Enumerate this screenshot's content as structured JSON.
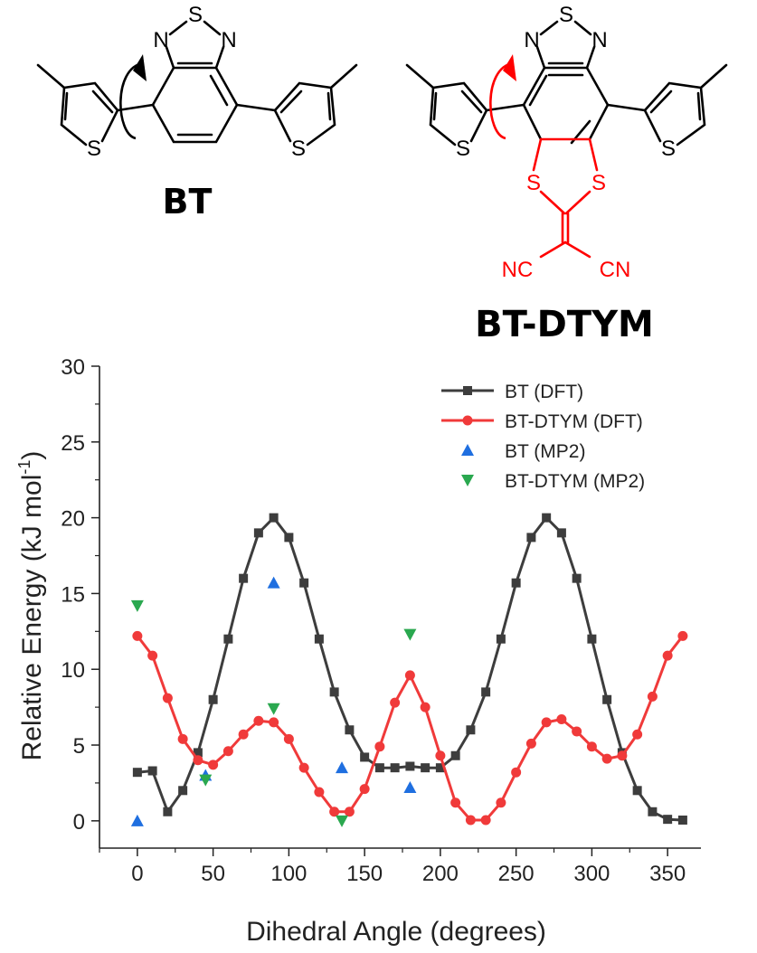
{
  "molecules": {
    "bt": {
      "name": "BT",
      "atoms": {
        "s_thiadiazole": "S",
        "n_left": "N",
        "n_right": "N",
        "s_thiophene_left": "S",
        "s_thiophene_right": "S"
      }
    },
    "btdtym": {
      "name": "BT-DTYM",
      "atoms": {
        "s_thiadiazole": "S",
        "n_left": "N",
        "n_right": "N",
        "s_thiophene_left": "S",
        "s_thiophene_right": "S",
        "s_dithiole_left": "S",
        "s_dithiole_right": "S",
        "nc_left": "NC",
        "cn_right": "CN"
      }
    },
    "colors": {
      "bt": "#000000",
      "btdtym_modification": "#ff0000"
    }
  },
  "chart_data": {
    "type": "line",
    "xlabel": "Dihedral Angle (degrees)",
    "ylabel": "Relative Energy (kJ mol",
    "ylabel_superscript": "-1",
    "ylabel_suffix": ")",
    "xlim": [
      -25,
      372
    ],
    "ylim": [
      -1.8,
      30
    ],
    "xticks": [
      0,
      50,
      100,
      150,
      200,
      250,
      300,
      350
    ],
    "yticks": [
      0,
      5,
      10,
      15,
      20,
      25,
      30
    ],
    "legend_position": "top-right",
    "series": [
      {
        "name": "BT (DFT)",
        "color": "#3d3d3d",
        "marker": "square",
        "line": true,
        "x": [
          0,
          10,
          20,
          30,
          40,
          50,
          60,
          70,
          80,
          90,
          100,
          110,
          120,
          130,
          140,
          150,
          160,
          170,
          180,
          190,
          200,
          210,
          220,
          230,
          240,
          250,
          260,
          270,
          280,
          290,
          300,
          310,
          320,
          330,
          340,
          350,
          360
        ],
        "y": [
          3.2,
          3.3,
          0.6,
          2.0,
          4.5,
          8.0,
          12.0,
          16.0,
          19.0,
          20.0,
          18.7,
          15.7,
          12.0,
          8.5,
          6.0,
          4.2,
          3.5,
          3.5,
          3.6,
          3.5,
          3.5,
          4.3,
          6.0,
          8.5,
          12.0,
          15.7,
          18.7,
          20.0,
          19.0,
          16.0,
          12.0,
          8.0,
          4.5,
          2.0,
          0.6,
          0.1,
          0.05
        ]
      },
      {
        "name": "BT-DTYM (DFT)",
        "color": "#f03a3a",
        "marker": "circle",
        "line": true,
        "x": [
          0,
          10,
          20,
          30,
          40,
          50,
          60,
          70,
          80,
          90,
          100,
          110,
          120,
          130,
          140,
          150,
          160,
          170,
          180,
          190,
          200,
          210,
          220,
          230,
          240,
          250,
          260,
          270,
          280,
          290,
          300,
          310,
          320,
          330,
          340,
          350,
          360
        ],
        "y": [
          12.2,
          10.9,
          8.1,
          5.4,
          4.0,
          3.7,
          4.6,
          5.7,
          6.6,
          6.5,
          5.4,
          3.5,
          1.9,
          0.6,
          0.6,
          2.1,
          4.9,
          7.8,
          9.6,
          7.5,
          4.3,
          1.2,
          0.05,
          0.05,
          1.2,
          3.2,
          5.1,
          6.5,
          6.7,
          5.9,
          4.9,
          4.1,
          4.3,
          5.7,
          8.2,
          10.9,
          12.2
        ]
      },
      {
        "name": "BT (MP2)",
        "color": "#1f6fe0",
        "marker": "triangle-up",
        "line": false,
        "x": [
          0,
          45,
          90,
          135,
          180
        ],
        "y": [
          0.0,
          3.0,
          15.7,
          3.5,
          2.2
        ]
      },
      {
        "name": "BT-DTYM (MP2)",
        "color": "#2aa84f",
        "marker": "triangle-down",
        "line": false,
        "x": [
          0,
          45,
          90,
          135,
          180
        ],
        "y": [
          14.2,
          2.7,
          7.4,
          0.0,
          12.3
        ]
      }
    ]
  }
}
